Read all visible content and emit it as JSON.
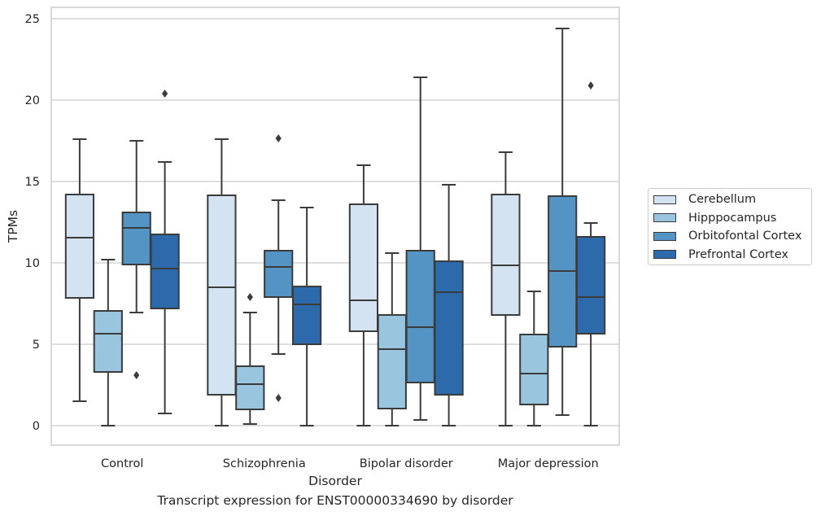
{
  "chart_data": {
    "type": "boxplot",
    "title": "",
    "caption": "Transcript expression for ENST00000334690 by disorder",
    "xlabel": "Disorder",
    "ylabel": "TPMs",
    "ylim": [
      -1.2,
      25.7
    ],
    "yticks": [
      0,
      5,
      10,
      15,
      20,
      25
    ],
    "grid": true,
    "legend_position": "right",
    "categories": [
      "Control",
      "Schizophrenia",
      "Bipolar disorder",
      "Major depression"
    ],
    "series": [
      {
        "name": "Cerebellum",
        "color": "#d4e3f2",
        "boxes": [
          {
            "whislo": 1.5,
            "q1": 7.85,
            "med": 11.55,
            "q3": 14.2,
            "whishi": 17.6,
            "fliers": []
          },
          {
            "whislo": 0.0,
            "q1": 1.9,
            "med": 8.5,
            "q3": 14.15,
            "whishi": 17.6,
            "fliers": []
          },
          {
            "whislo": 0.0,
            "q1": 5.8,
            "med": 7.7,
            "q3": 13.6,
            "whishi": 16.0,
            "fliers": []
          },
          {
            "whislo": 0.0,
            "q1": 6.8,
            "med": 9.85,
            "q3": 14.2,
            "whishi": 16.8,
            "fliers": []
          }
        ]
      },
      {
        "name": "Hipppocampus",
        "color": "#9ac5df",
        "boxes": [
          {
            "whislo": 0.0,
            "q1": 3.3,
            "med": 5.65,
            "q3": 7.05,
            "whishi": 10.2,
            "fliers": []
          },
          {
            "whislo": 0.1,
            "q1": 1.0,
            "med": 2.55,
            "q3": 3.65,
            "whishi": 6.95,
            "fliers": [
              7.9
            ]
          },
          {
            "whislo": 0.0,
            "q1": 1.05,
            "med": 4.7,
            "q3": 6.8,
            "whishi": 10.6,
            "fliers": []
          },
          {
            "whislo": 0.0,
            "q1": 1.3,
            "med": 3.2,
            "q3": 5.6,
            "whishi": 8.25,
            "fliers": []
          }
        ]
      },
      {
        "name": "Orbitofontal Cortex",
        "color": "#5394c4",
        "boxes": [
          {
            "whislo": 6.95,
            "q1": 9.9,
            "med": 12.15,
            "q3": 13.1,
            "whishi": 17.5,
            "fliers": [
              3.1
            ]
          },
          {
            "whislo": 4.4,
            "q1": 7.9,
            "med": 9.75,
            "q3": 10.75,
            "whishi": 13.85,
            "fliers": [
              17.65,
              1.7
            ]
          },
          {
            "whislo": 0.35,
            "q1": 2.65,
            "med": 6.05,
            "q3": 10.75,
            "whishi": 21.4,
            "fliers": []
          },
          {
            "whislo": 0.65,
            "q1": 4.85,
            "med": 9.5,
            "q3": 14.1,
            "whishi": 24.4,
            "fliers": []
          }
        ]
      },
      {
        "name": "Prefrontal Cortex",
        "color": "#2d6aab",
        "boxes": [
          {
            "whislo": 0.75,
            "q1": 7.2,
            "med": 9.65,
            "q3": 11.75,
            "whishi": 16.2,
            "fliers": [
              20.4
            ]
          },
          {
            "whislo": 0.0,
            "q1": 5.0,
            "med": 7.45,
            "q3": 8.55,
            "whishi": 13.4,
            "fliers": []
          },
          {
            "whislo": 0.0,
            "q1": 1.9,
            "med": 8.2,
            "q3": 10.1,
            "whishi": 14.8,
            "fliers": []
          },
          {
            "whislo": 0.0,
            "q1": 5.65,
            "med": 7.9,
            "q3": 11.6,
            "whishi": 12.45,
            "fliers": [
              20.9
            ]
          }
        ]
      }
    ]
  }
}
